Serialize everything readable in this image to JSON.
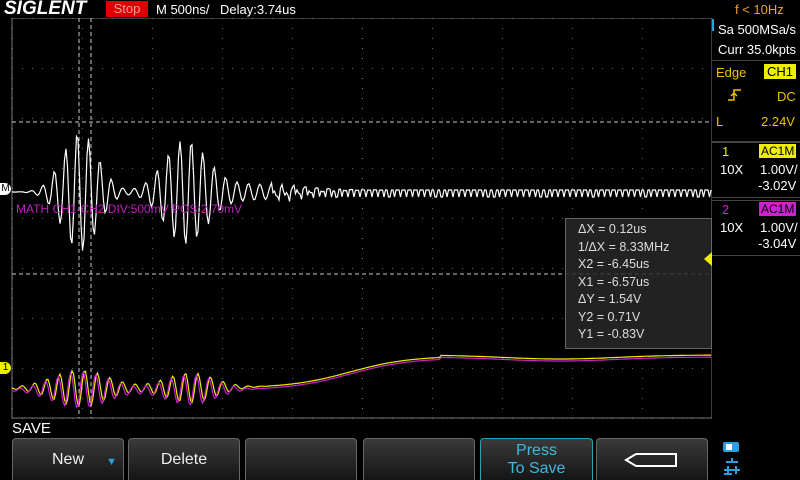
{
  "header": {
    "brand": "SIGLENT",
    "status": "Stop",
    "timebase": "M 500ns/",
    "delay": "Delay:3.74us",
    "frequency": "f < 10Hz"
  },
  "side_panel": {
    "sample_rate": "Sa 500MSa/s",
    "memory": "Curr 35.0kpts",
    "trigger": {
      "type": "Edge",
      "source": "CH1",
      "coupling": "DC",
      "level_label": "L",
      "level": "2.24V"
    },
    "channels": [
      {
        "number": "1",
        "coupling": "AC1M",
        "probe": "10X",
        "scale": "1.00V/",
        "offset": "-3.02V"
      },
      {
        "number": "2",
        "coupling": "AC1M",
        "probe": "10X",
        "scale": "1.00V/",
        "offset": "-3.04V"
      }
    ]
  },
  "screen": {
    "math_marker": "M",
    "channel_marker": "1",
    "math_info": "MATH CH1-CH2 DIV:500mV POS:2.70mV",
    "cursor_readout": [
      "ΔX = 0.12us",
      "1/ΔX = 8.33MHz",
      "X2 = -6.45us",
      "X1 = -6.57us",
      "ΔY = 1.54V",
      "Y2 = 0.71V",
      "Y1 = -0.83V"
    ]
  },
  "menu": {
    "title": "SAVE",
    "new": "New",
    "delete": "Delete",
    "save": "Press To Save"
  }
}
